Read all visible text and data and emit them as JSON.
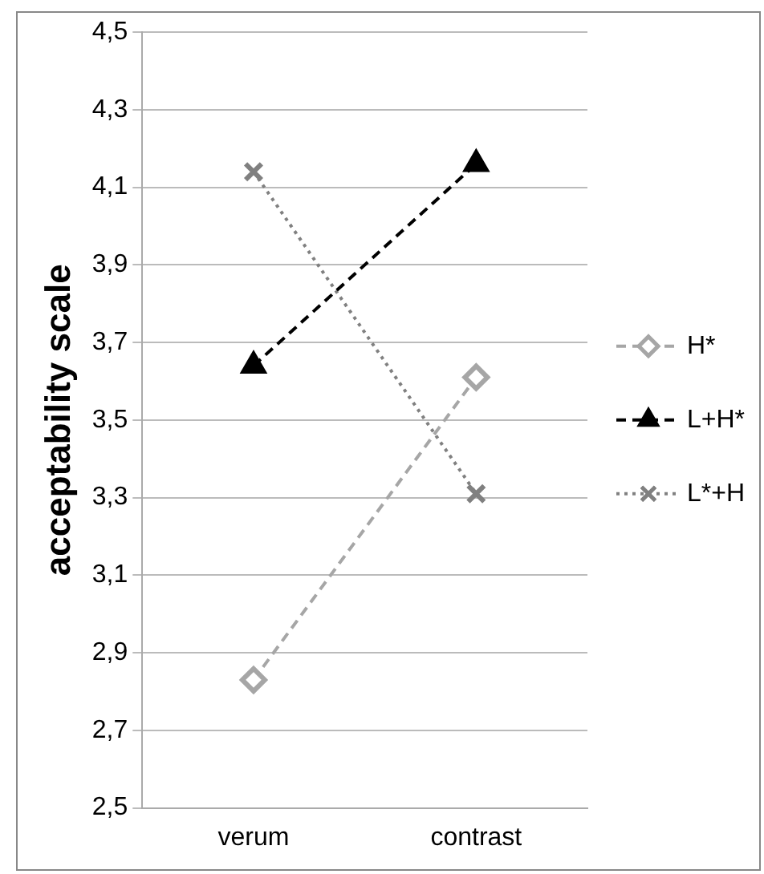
{
  "chart_data": {
    "type": "line",
    "ylabel": "acceptability scale",
    "categories": [
      "verum",
      "contrast"
    ],
    "series": [
      {
        "name": "H*",
        "color": "#a6a6a6",
        "values": [
          2.83,
          3.61
        ],
        "marker": "diamond",
        "line_style": "dashed"
      },
      {
        "name": "L+H*",
        "color": "#000000",
        "values": [
          3.64,
          4.16
        ],
        "marker": "triangle",
        "line_style": "dashed"
      },
      {
        "name": "L*+H",
        "color": "#808080",
        "values": [
          4.14,
          3.31
        ],
        "marker": "cross",
        "line_style": "dotted"
      }
    ],
    "ylim": [
      2.5,
      4.5
    ],
    "yticks": [
      {
        "value": 2.5,
        "label": "2,5"
      },
      {
        "value": 2.7,
        "label": "2,7"
      },
      {
        "value": 2.9,
        "label": "2,9"
      },
      {
        "value": 3.1,
        "label": "3,1"
      },
      {
        "value": 3.3,
        "label": "3,3"
      },
      {
        "value": 3.5,
        "label": "3,5"
      },
      {
        "value": 3.7,
        "label": "3,7"
      },
      {
        "value": 3.9,
        "label": "3,9"
      },
      {
        "value": 4.1,
        "label": "4,1"
      },
      {
        "value": 4.3,
        "label": "4,3"
      },
      {
        "value": 4.5,
        "label": "4,5"
      }
    ],
    "grid": "y",
    "legend": "right"
  }
}
